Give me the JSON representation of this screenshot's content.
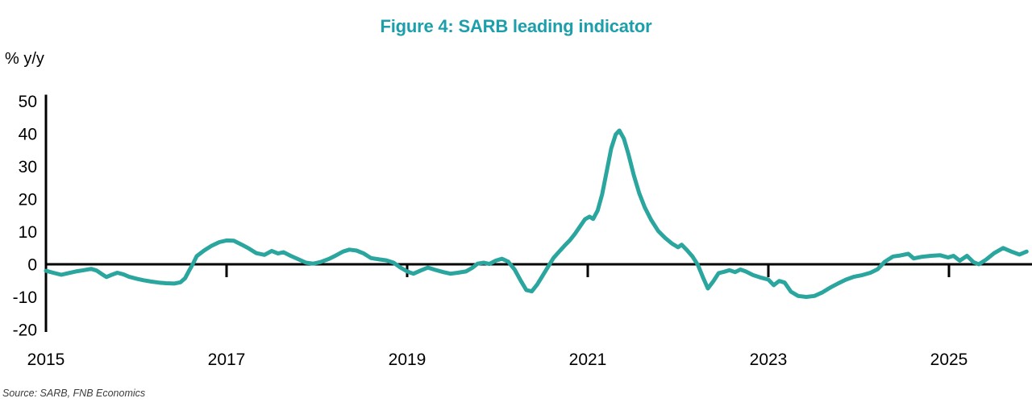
{
  "figure": {
    "title": "Figure 4: SARB leading indicator",
    "y_axis_unit_label": "% y/y",
    "source": "Source: SARB, FNB Economics"
  },
  "colors": {
    "title": "#1d9fab",
    "line": "#2aa69f",
    "axis": "#000000",
    "tick_label": "#000000",
    "source_text": "#3c3c3c",
    "background": "#ffffff"
  },
  "chart_data": {
    "type": "line",
    "title": "Figure 4: SARB leading indicator",
    "xlabel": "",
    "ylabel": "% y/y",
    "xlim": [
      2015,
      2025.95
    ],
    "ylim": [
      -20,
      50
    ],
    "x_ticks": [
      2015,
      2017,
      2019,
      2021,
      2023,
      2025
    ],
    "y_ticks": [
      50,
      40,
      30,
      20,
      10,
      0,
      -10,
      -20
    ],
    "grid": false,
    "legend_position": "none",
    "zero_line": true,
    "series": [
      {
        "name": "SARB leading indicator (% y/y)",
        "points": [
          [
            2015.0,
            -2.0
          ],
          [
            2015.08,
            -2.6
          ],
          [
            2015.17,
            -3.2
          ],
          [
            2015.25,
            -2.7
          ],
          [
            2015.33,
            -2.2
          ],
          [
            2015.42,
            -1.8
          ],
          [
            2015.5,
            -1.4
          ],
          [
            2015.56,
            -1.9
          ],
          [
            2015.63,
            -3.2
          ],
          [
            2015.67,
            -3.9
          ],
          [
            2015.72,
            -3.3
          ],
          [
            2015.79,
            -2.6
          ],
          [
            2015.86,
            -3.1
          ],
          [
            2015.92,
            -3.8
          ],
          [
            2016.0,
            -4.4
          ],
          [
            2016.08,
            -4.9
          ],
          [
            2016.17,
            -5.3
          ],
          [
            2016.25,
            -5.6
          ],
          [
            2016.33,
            -5.8
          ],
          [
            2016.42,
            -5.9
          ],
          [
            2016.49,
            -5.5
          ],
          [
            2016.54,
            -4.3
          ],
          [
            2016.58,
            -2.2
          ],
          [
            2016.63,
            0.3
          ],
          [
            2016.67,
            2.5
          ],
          [
            2016.75,
            4.2
          ],
          [
            2016.83,
            5.6
          ],
          [
            2016.92,
            6.8
          ],
          [
            2017.0,
            7.3
          ],
          [
            2017.08,
            7.2
          ],
          [
            2017.17,
            6.0
          ],
          [
            2017.25,
            4.8
          ],
          [
            2017.33,
            3.4
          ],
          [
            2017.42,
            2.9
          ],
          [
            2017.5,
            4.1
          ],
          [
            2017.57,
            3.3
          ],
          [
            2017.63,
            3.7
          ],
          [
            2017.71,
            2.6
          ],
          [
            2017.79,
            1.6
          ],
          [
            2017.88,
            0.5
          ],
          [
            2017.96,
            0.2
          ],
          [
            2018.04,
            0.7
          ],
          [
            2018.13,
            1.6
          ],
          [
            2018.21,
            2.7
          ],
          [
            2018.29,
            3.9
          ],
          [
            2018.36,
            4.5
          ],
          [
            2018.44,
            4.2
          ],
          [
            2018.52,
            3.3
          ],
          [
            2018.6,
            1.9
          ],
          [
            2018.69,
            1.5
          ],
          [
            2018.77,
            1.2
          ],
          [
            2018.85,
            0.5
          ],
          [
            2018.92,
            -0.9
          ],
          [
            2019.0,
            -2.2
          ],
          [
            2019.07,
            -2.9
          ],
          [
            2019.15,
            -1.9
          ],
          [
            2019.23,
            -1.0
          ],
          [
            2019.31,
            -1.7
          ],
          [
            2019.4,
            -2.4
          ],
          [
            2019.48,
            -2.9
          ],
          [
            2019.56,
            -2.6
          ],
          [
            2019.65,
            -2.2
          ],
          [
            2019.72,
            -1.1
          ],
          [
            2019.78,
            0.2
          ],
          [
            2019.85,
            0.5
          ],
          [
            2019.91,
            0.1
          ],
          [
            2019.98,
            1.1
          ],
          [
            2020.05,
            1.7
          ],
          [
            2020.12,
            0.8
          ],
          [
            2020.19,
            -1.6
          ],
          [
            2020.26,
            -5.1
          ],
          [
            2020.32,
            -7.9
          ],
          [
            2020.38,
            -8.3
          ],
          [
            2020.44,
            -6.2
          ],
          [
            2020.5,
            -3.5
          ],
          [
            2020.56,
            -0.8
          ],
          [
            2020.62,
            1.9
          ],
          [
            2020.68,
            3.8
          ],
          [
            2020.74,
            5.6
          ],
          [
            2020.8,
            7.3
          ],
          [
            2020.86,
            9.4
          ],
          [
            2020.92,
            11.8
          ],
          [
            2020.97,
            13.8
          ],
          [
            2021.02,
            14.6
          ],
          [
            2021.06,
            13.9
          ],
          [
            2021.11,
            16.5
          ],
          [
            2021.16,
            21.5
          ],
          [
            2021.21,
            28.5
          ],
          [
            2021.26,
            35.5
          ],
          [
            2021.31,
            39.8
          ],
          [
            2021.35,
            41.0
          ],
          [
            2021.4,
            38.5
          ],
          [
            2021.45,
            33.8
          ],
          [
            2021.51,
            27.3
          ],
          [
            2021.57,
            21.8
          ],
          [
            2021.63,
            17.5
          ],
          [
            2021.7,
            13.7
          ],
          [
            2021.78,
            10.2
          ],
          [
            2021.86,
            8.0
          ],
          [
            2021.93,
            6.4
          ],
          [
            2022.0,
            5.2
          ],
          [
            2022.04,
            6.0
          ],
          [
            2022.1,
            4.3
          ],
          [
            2022.16,
            2.4
          ],
          [
            2022.22,
            -0.2
          ],
          [
            2022.28,
            -4.3
          ],
          [
            2022.33,
            -7.4
          ],
          [
            2022.39,
            -5.2
          ],
          [
            2022.45,
            -2.7
          ],
          [
            2022.51,
            -2.3
          ],
          [
            2022.57,
            -1.8
          ],
          [
            2022.63,
            -2.4
          ],
          [
            2022.69,
            -1.6
          ],
          [
            2022.75,
            -2.2
          ],
          [
            2022.83,
            -3.3
          ],
          [
            2022.92,
            -4.1
          ],
          [
            2023.0,
            -4.7
          ],
          [
            2023.06,
            -6.4
          ],
          [
            2023.12,
            -5.1
          ],
          [
            2023.18,
            -5.6
          ],
          [
            2023.25,
            -8.4
          ],
          [
            2023.33,
            -9.7
          ],
          [
            2023.42,
            -10.0
          ],
          [
            2023.51,
            -9.7
          ],
          [
            2023.6,
            -8.6
          ],
          [
            2023.68,
            -7.2
          ],
          [
            2023.77,
            -5.9
          ],
          [
            2023.86,
            -4.7
          ],
          [
            2023.95,
            -3.8
          ],
          [
            2024.04,
            -3.3
          ],
          [
            2024.13,
            -2.6
          ],
          [
            2024.21,
            -1.5
          ],
          [
            2024.29,
            0.8
          ],
          [
            2024.38,
            2.4
          ],
          [
            2024.46,
            2.7
          ],
          [
            2024.55,
            3.2
          ],
          [
            2024.61,
            1.8
          ],
          [
            2024.7,
            2.3
          ],
          [
            2024.8,
            2.6
          ],
          [
            2024.9,
            2.8
          ],
          [
            2024.99,
            2.1
          ],
          [
            2025.05,
            2.6
          ],
          [
            2025.12,
            1.1
          ],
          [
            2025.2,
            2.6
          ],
          [
            2025.27,
            0.7
          ],
          [
            2025.33,
            0.0
          ],
          [
            2025.41,
            1.4
          ],
          [
            2025.5,
            3.4
          ],
          [
            2025.6,
            5.0
          ],
          [
            2025.69,
            3.9
          ],
          [
            2025.78,
            3.0
          ],
          [
            2025.86,
            3.9
          ]
        ]
      }
    ]
  }
}
